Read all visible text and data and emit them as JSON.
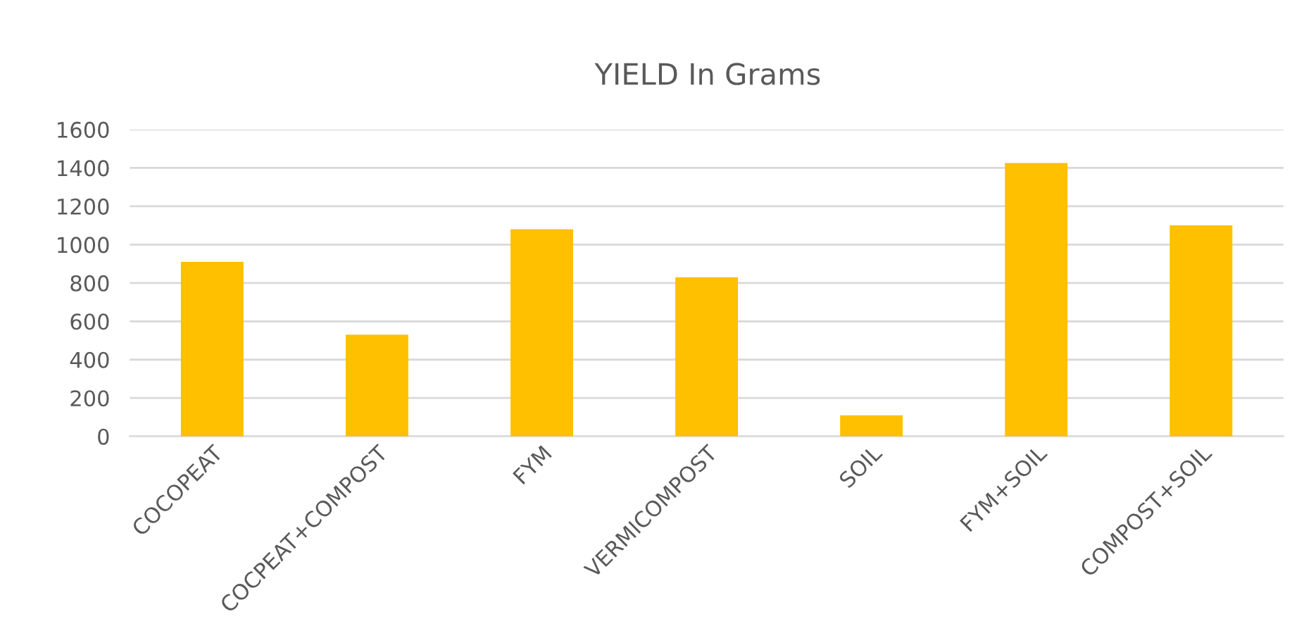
{
  "chart_data": {
    "type": "bar",
    "title": "YIELD In Grams",
    "categories": [
      "COCOPEAT",
      "COCPEAT+COMPOST",
      "FYM",
      "VERMICOMPOST",
      "SOIL",
      "FYM+SOIL",
      "COMPOST+SOIL"
    ],
    "values": [
      910,
      530,
      1080,
      830,
      110,
      1425,
      1100
    ],
    "color": "#ffc000",
    "ylim": [
      0,
      1600
    ],
    "yticks": [
      0,
      200,
      400,
      600,
      800,
      1000,
      1200,
      1400,
      1600
    ],
    "grid": "y",
    "legend": false
  }
}
